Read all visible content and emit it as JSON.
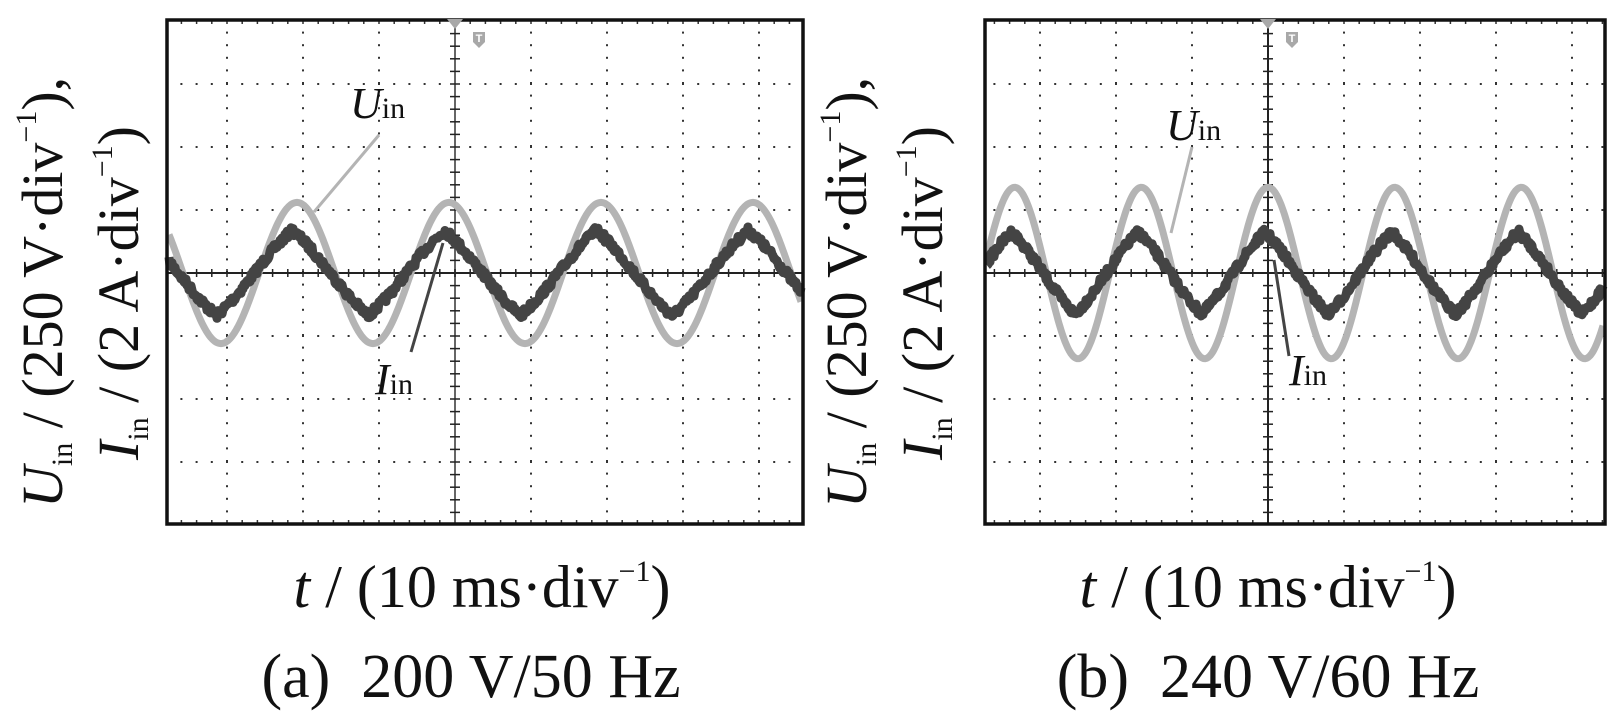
{
  "figure": {
    "panels": [
      {
        "id": "a",
        "caption": "(a)  200 V/50 Hz",
        "xlabel": {
          "var": "t",
          "unit_pre": " / (10 ms·div",
          "sup": "−1",
          "unit_post": ")"
        },
        "ylabel_line1": {
          "var": "U",
          "sub": "in",
          "unit_pre": " / (250 V·div",
          "sup": "−1",
          "unit_post": "),"
        },
        "ylabel_line2": {
          "var": "I",
          "sub": "in",
          "unit_pre": " / (2 A·div",
          "sup": "−1",
          "unit_post": ")"
        },
        "u_label": {
          "var": "U",
          "sub": "in"
        },
        "i_label": {
          "var": "I",
          "sub": "in"
        },
        "trigger_marker": "T"
      },
      {
        "id": "b",
        "caption": "(b)  240 V/60 Hz",
        "xlabel": {
          "var": "t",
          "unit_pre": " / (10 ms·div",
          "sup": "−1",
          "unit_post": ")"
        },
        "ylabel_line1": {
          "var": "U",
          "sub": "in",
          "unit_pre": " / (250 V·div",
          "sup": "−1",
          "unit_post": "),"
        },
        "ylabel_line2": {
          "var": "I",
          "sub": "in",
          "unit_pre": " / (2 A·div",
          "sup": "−1",
          "unit_post": ")"
        },
        "u_label": {
          "var": "U",
          "sub": "in"
        },
        "i_label": {
          "var": "I",
          "sub": "in"
        },
        "trigger_marker": "T"
      }
    ],
    "colors": {
      "voltage_trace": "#b4b4b4",
      "current_trace": "#444444",
      "frame": "#111111",
      "grid_dots": "#333333",
      "axis": "#222222",
      "trigger": "#a8a8a8"
    }
  },
  "chart_data": [
    {
      "type": "line",
      "title": "(a)  200 V/50 Hz",
      "xlabel": "t / (10 ms·div⁻¹)",
      "ylabel": "U_in / (250 V·div⁻¹), I_in / (2 A·div⁻¹)",
      "x_unit": "ms",
      "x_scale_per_div": 10,
      "xlim_div": [
        -3.8,
        4.6
      ],
      "ylim_div": [
        -4,
        4
      ],
      "grid": true,
      "series": [
        {
          "name": "U_in",
          "unit": "V",
          "scale_per_div": 250,
          "waveform": "sine",
          "frequency_hz": 50,
          "amplitude": 280,
          "peak_time_ms": -0.8
        },
        {
          "name": "I_in",
          "unit": "A",
          "scale_per_div": 2,
          "waveform": "triangle-like, in phase with U_in",
          "frequency_hz": 50,
          "amplitude": 1.35,
          "peak_time_ms": -1.4
        }
      ],
      "annotations": [
        "U_in",
        "I_in",
        "T"
      ]
    },
    {
      "type": "line",
      "title": "(b)  240 V/60 Hz",
      "xlabel": "t / (10 ms·div⁻¹)",
      "ylabel": "U_in / (250 V·div⁻¹), I_in / (2 A·div⁻¹)",
      "x_unit": "ms",
      "x_scale_per_div": 10,
      "xlim_div": [
        -3.7,
        4.4
      ],
      "ylim_div": [
        -4,
        4
      ],
      "grid": true,
      "series": [
        {
          "name": "U_in",
          "unit": "V",
          "scale_per_div": 250,
          "waveform": "sine",
          "frequency_hz": 60,
          "amplitude": 340,
          "peak_time_ms": 0.0
        },
        {
          "name": "I_in",
          "unit": "A",
          "scale_per_div": 2,
          "waveform": "triangle-like, in phase with U_in",
          "frequency_hz": 60,
          "amplitude": 1.3,
          "peak_time_ms": -0.4
        }
      ],
      "annotations": [
        "U_in",
        "I_in",
        "T"
      ]
    }
  ]
}
